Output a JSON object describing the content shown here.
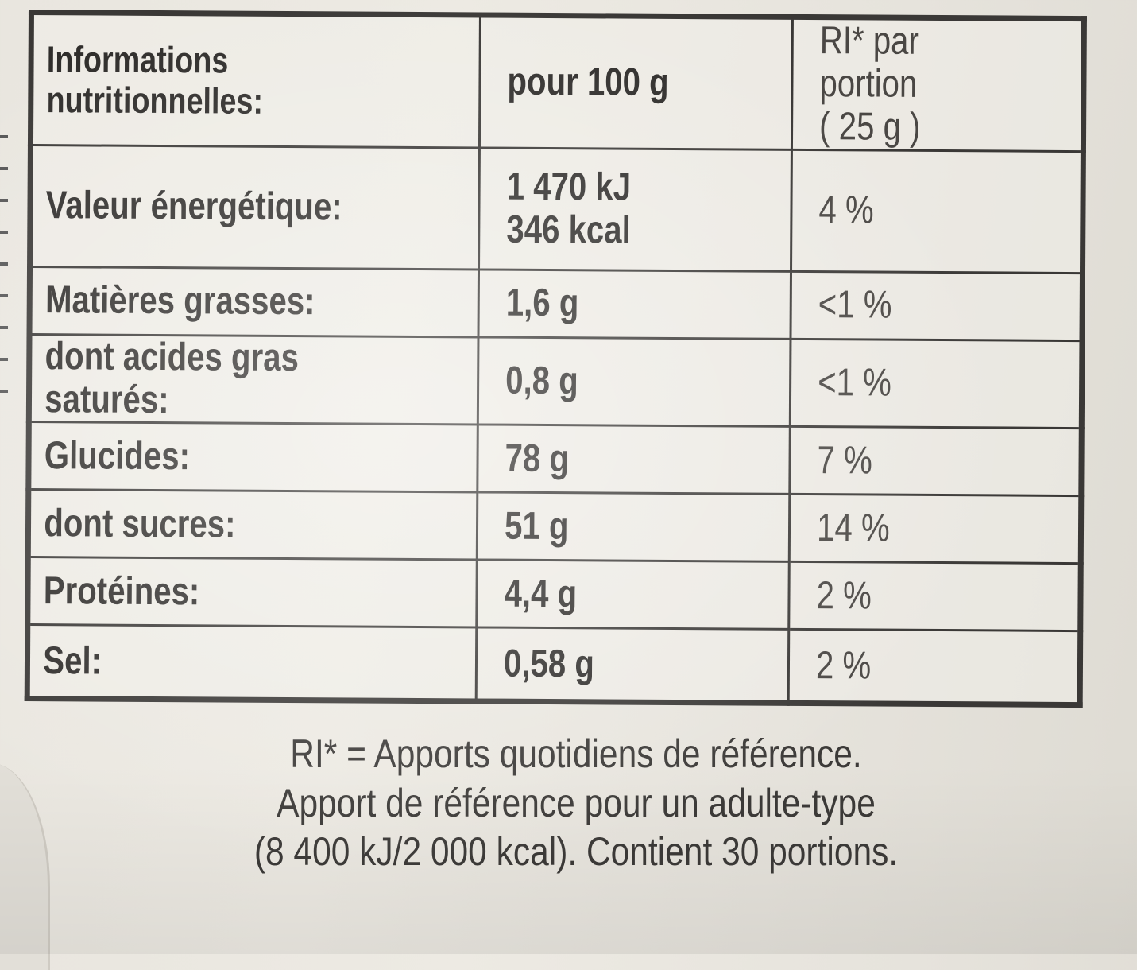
{
  "table": {
    "header": {
      "label": "Informations nutritionnelles:",
      "per100": "pour 100 g",
      "ri_line1": "RI* par portion",
      "ri_line2": "( 25 g )"
    },
    "rows": [
      {
        "name": "Valeur énergétique:",
        "value_line1": "1 470 kJ",
        "value_line2": "346 kcal",
        "ri": "4 %"
      },
      {
        "name": "Matières grasses:",
        "value": "1,6 g",
        "ri": "<1 %"
      },
      {
        "name": "dont acides gras saturés:",
        "value": "0,8 g",
        "ri": "<1 %"
      },
      {
        "name": "Glucides:",
        "value": "78 g",
        "ri": "7 %"
      },
      {
        "name": "dont sucres:",
        "value": "51 g",
        "ri": "14 %"
      },
      {
        "name": "Protéines:",
        "value": "4,4 g",
        "ri": "2 %"
      },
      {
        "name": "Sel:",
        "value": "0,58 g",
        "ri": "2 %"
      }
    ]
  },
  "footnote": {
    "line1": "RI* = Apports quotidiens de référence.",
    "line2": "Apport de référence pour un adulte-type",
    "line3": "(8 400 kJ/2 000 kcal). Contient 30 portions."
  }
}
